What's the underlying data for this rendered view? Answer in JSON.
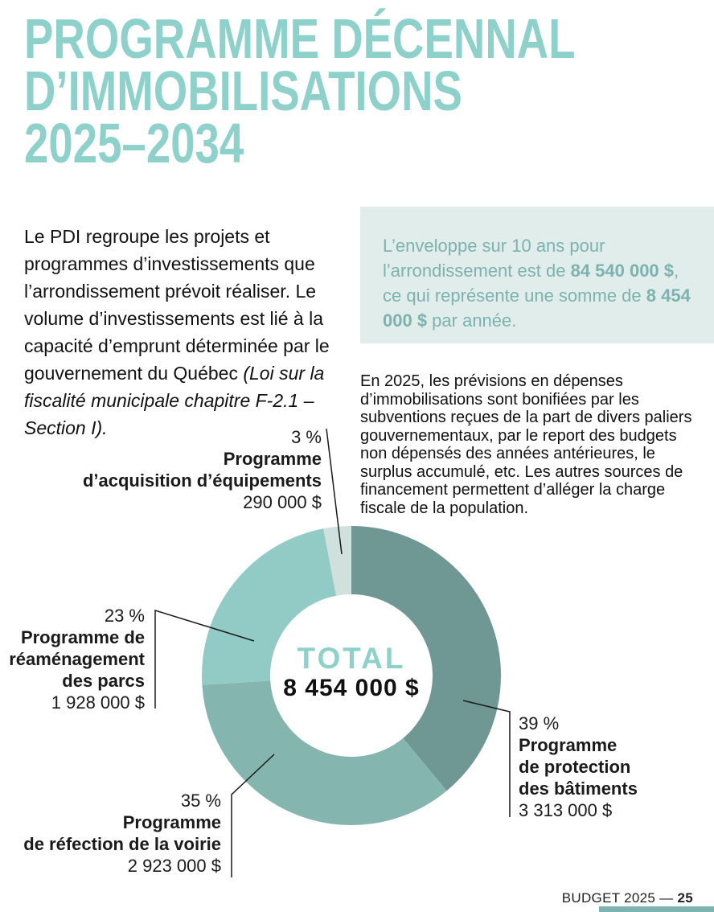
{
  "page": {
    "title_lines": [
      "PROGRAMME DÉCENNAL",
      "D’IMMOBILISATIONS",
      "2025–2034"
    ],
    "footer": {
      "label": "BUDGET 2025 — ",
      "page_number": "25"
    }
  },
  "intro": {
    "text_regular": "Le PDI regroupe les projets et programmes d’investissements que l’arrondissement prévoit réaliser. Le volume d’investissements est lié à la capacité d’emprunt déterminée par le gouvernement du Québec ",
    "text_italic": "(Loi sur la fiscalité municipale chapitre F-2.1 – Section I)."
  },
  "highlight_box": {
    "part1": "L’enveloppe sur 10 ans pour l’arrondissement est de ",
    "amount1": "84 540 000 $",
    "part2": ", ce qui représente une somme de ",
    "amount2": "8 454 000 $",
    "part3": " par année.",
    "bg_color": "#e0edeb",
    "text_color": "#7cb2af"
  },
  "note": {
    "text": "En 2025, les prévisions en dépenses d’immobilisations sont bonifiées par les subventions reçues de la part de divers paliers gouvernementaux, par le report des budgets non dépensés des années antérieures, le surplus accumulé, etc. Les autres sources de financement permettent d’alléger la charge fiscale de la population."
  },
  "chart_data": {
    "type": "pie",
    "subtype": "donut",
    "center_label": "TOTAL",
    "center_value": "8 454 000 $",
    "start_angle_deg": 0,
    "direction": "clockwise",
    "slices": [
      {
        "label": "Programme de protection des bâtiments",
        "percent": 39,
        "percent_label": "39 %",
        "amount": "3 313 000 $",
        "color": "#6f9894",
        "name_lines": "Programme\nde protection\ndes bâtiments"
      },
      {
        "label": "Programme de réfection de la voirie",
        "percent": 35,
        "percent_label": "35 %",
        "amount": "2 923 000 $",
        "color": "#85b5af",
        "name_lines": "Programme\nde réfection de la voirie"
      },
      {
        "label": "Programme de réaménagement des parcs",
        "percent": 23,
        "percent_label": "23 %",
        "amount": "1 928 000 $",
        "color": "#92cbc5",
        "name_lines": "Programme de\nréaménagement\ndes parcs"
      },
      {
        "label": "Programme d’acquisition d’équipements",
        "percent": 3,
        "percent_label": "3 %",
        "amount": "290 000 $",
        "color": "#cfe0dd",
        "name_lines": "Programme\nd’acquisition d’équipements"
      }
    ]
  },
  "colors": {
    "accent_teal": "#8ed0ca",
    "slice_dark": "#6f9894",
    "slice_medium": "#85b5af",
    "slice_light": "#92cbc5",
    "slice_pale": "#cfe0dd",
    "box_bg": "#e0edeb",
    "box_text": "#7cb2af",
    "footer_bar": "#7db4b1"
  }
}
